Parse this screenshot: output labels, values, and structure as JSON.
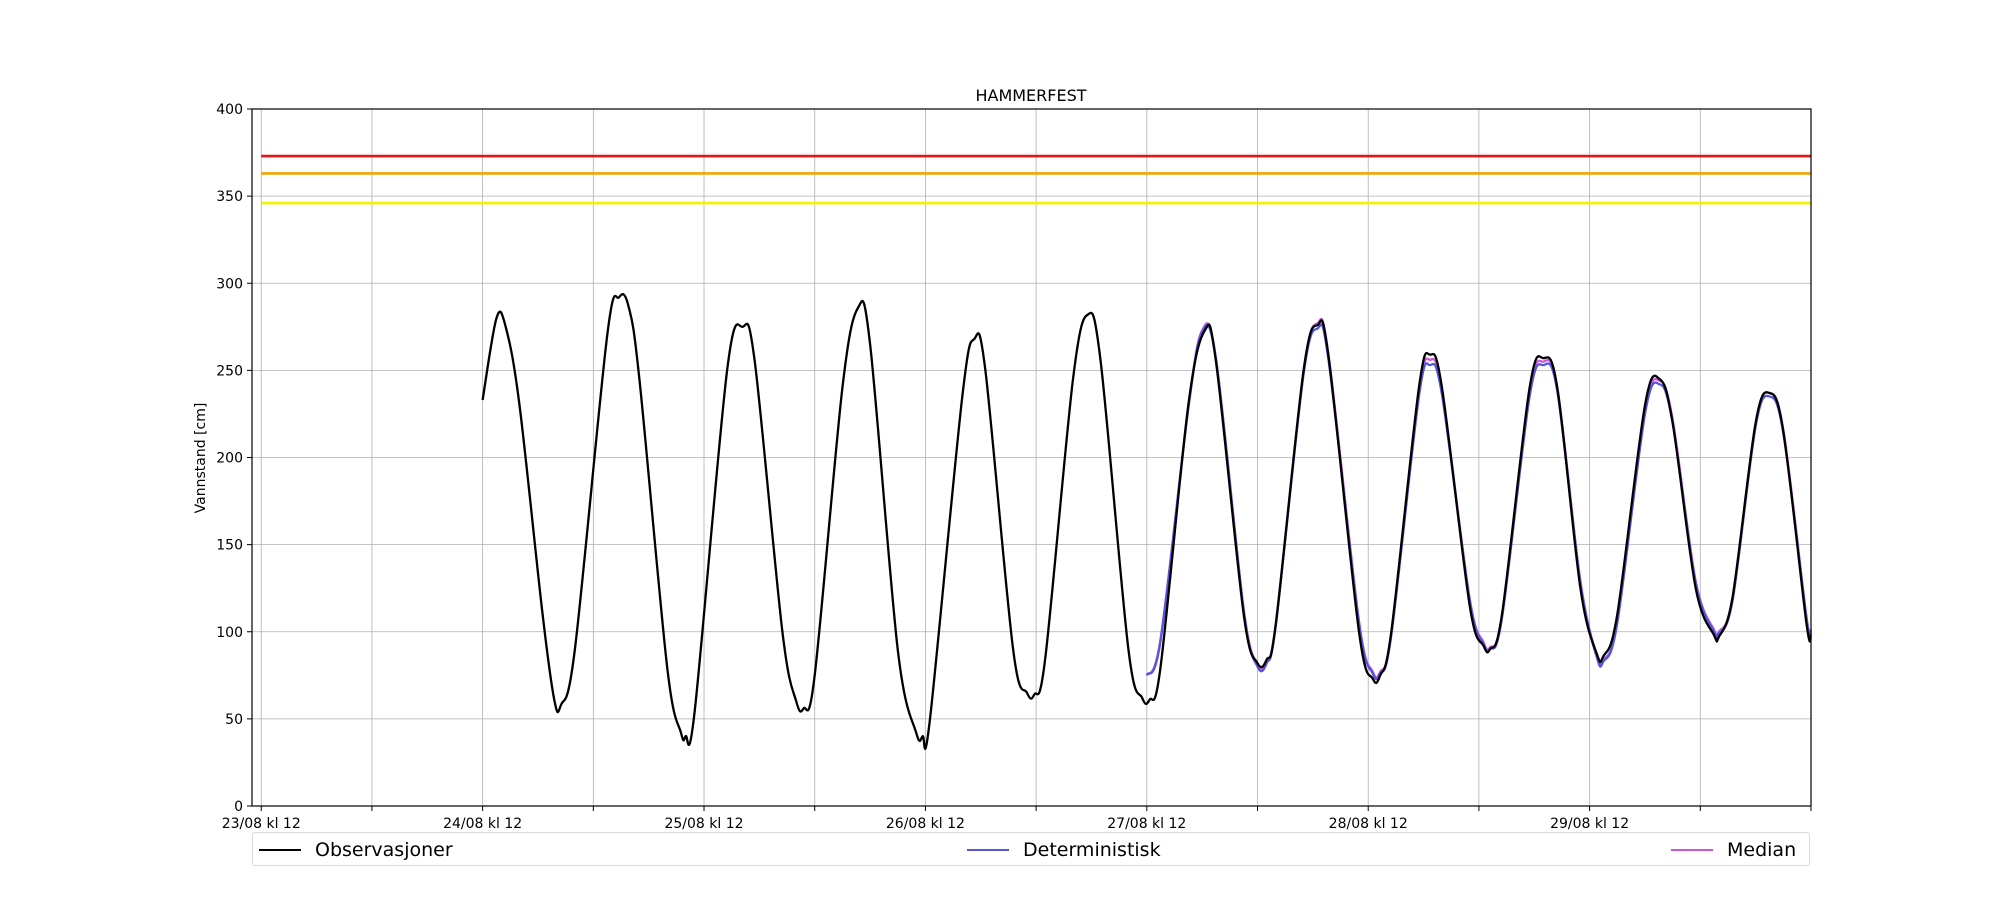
{
  "chart_data": {
    "type": "line",
    "title": "HAMMERFEST",
    "ylabel": "Vannstand [cm]",
    "xlabel": "",
    "ylim": [
      0,
      400
    ],
    "yticks": [
      0,
      50,
      100,
      150,
      200,
      250,
      300,
      350,
      400
    ],
    "x_tick_labels": [
      "23/08 kl 12",
      "24/08 kl 12",
      "25/08 kl 12",
      "26/08 kl 12",
      "27/08 kl 12",
      "28/08 kl 12",
      "29/08 kl 12"
    ],
    "x_unit": "hours since 23/08 kl 12",
    "xlim": [
      -1,
      168
    ],
    "grid": true,
    "legend_position": "bottom",
    "thresholds": [
      {
        "value": 373,
        "color": "#e81414"
      },
      {
        "value": 363,
        "color": "#f5a300"
      },
      {
        "value": 346,
        "color": "#f2f200"
      }
    ],
    "series": [
      {
        "name": "Observasjoner",
        "color": "#000000",
        "points": [
          [
            24,
            233
          ],
          [
            25.5,
            280
          ],
          [
            26.5,
            275
          ],
          [
            28,
            230
          ],
          [
            30.5,
            110
          ],
          [
            31.8,
            60
          ],
          [
            32.5,
            58
          ],
          [
            34,
            90
          ],
          [
            37.5,
            270
          ],
          [
            38.8,
            292
          ],
          [
            39.8,
            287
          ],
          [
            41,
            245
          ],
          [
            44,
            80
          ],
          [
            45.5,
            42
          ],
          [
            46,
            40
          ],
          [
            47,
            55
          ],
          [
            50.5,
            250
          ],
          [
            52.2,
            275
          ],
          [
            53.5,
            255
          ],
          [
            56.5,
            100
          ],
          [
            58,
            60
          ],
          [
            58.8,
            56
          ],
          [
            60,
            75
          ],
          [
            63,
            240
          ],
          [
            64.7,
            286
          ],
          [
            66,
            265
          ],
          [
            69,
            90
          ],
          [
            71,
            42
          ],
          [
            71.7,
            40
          ],
          [
            72.5,
            50
          ],
          [
            76,
            235
          ],
          [
            77.3,
            268
          ],
          [
            78.5,
            250
          ],
          [
            81.5,
            90
          ],
          [
            83,
            65
          ],
          [
            83.8,
            64
          ],
          [
            85,
            85
          ],
          [
            88,
            245
          ],
          [
            89.6,
            282
          ],
          [
            91,
            255
          ],
          [
            94,
            90
          ],
          [
            95.5,
            62
          ],
          [
            96.3,
            61
          ],
          [
            97.5,
            80
          ],
          [
            100.5,
            230
          ],
          [
            102.3,
            273
          ],
          [
            103.5,
            255
          ],
          [
            106.5,
            110
          ],
          [
            108,
            82
          ],
          [
            109,
            84
          ],
          [
            110,
            105
          ],
          [
            113,
            250
          ],
          [
            114.5,
            276
          ],
          [
            115.7,
            258
          ],
          [
            119,
            100
          ],
          [
            120.5,
            73
          ],
          [
            121.3,
            75
          ],
          [
            122.5,
            100
          ],
          [
            125.5,
            240
          ],
          [
            126.7,
            259
          ],
          [
            128,
            240
          ],
          [
            131,
            115
          ],
          [
            132.5,
            92
          ],
          [
            133.2,
            90
          ],
          [
            134.5,
            110
          ],
          [
            137.5,
            240
          ],
          [
            139,
            257
          ],
          [
            140.5,
            240
          ],
          [
            143,
            125
          ],
          [
            144.8,
            87
          ],
          [
            145.5,
            86
          ],
          [
            147,
            110
          ],
          [
            150,
            230
          ],
          [
            151.6,
            245
          ],
          [
            153,
            220
          ],
          [
            155.5,
            125
          ],
          [
            157.5,
            98
          ],
          [
            158,
            97
          ],
          [
            159.5,
            120
          ],
          [
            162,
            220
          ],
          [
            163.5,
            237
          ],
          [
            165,
            215
          ],
          [
            167.5,
            105
          ],
          [
            168,
            98
          ]
        ]
      },
      {
        "name": "Deterministisk",
        "color": "#5555dd",
        "points": [
          [
            96,
            75
          ],
          [
            97.5,
            95
          ],
          [
            100.5,
            228
          ],
          [
            102,
            272
          ],
          [
            103.5,
            256
          ],
          [
            106.5,
            112
          ],
          [
            108,
            80
          ],
          [
            109,
            82
          ],
          [
            110,
            105
          ],
          [
            113,
            248
          ],
          [
            114.5,
            274
          ],
          [
            115.7,
            256
          ],
          [
            119,
            105
          ],
          [
            120.5,
            76
          ],
          [
            121.3,
            76
          ],
          [
            122.5,
            98
          ],
          [
            125.5,
            235
          ],
          [
            126.7,
            253
          ],
          [
            128,
            236
          ],
          [
            131,
            118
          ],
          [
            132.5,
            93
          ],
          [
            133.2,
            90
          ],
          [
            134.5,
            108
          ],
          [
            137.5,
            235
          ],
          [
            139,
            253
          ],
          [
            140.5,
            238
          ],
          [
            143,
            128
          ],
          [
            144.8,
            85
          ],
          [
            145.5,
            83
          ],
          [
            147,
            105
          ],
          [
            150,
            225
          ],
          [
            151.6,
            242
          ],
          [
            153,
            220
          ],
          [
            155.5,
            128
          ],
          [
            157.5,
            100
          ],
          [
            158,
            99
          ],
          [
            159.5,
            118
          ],
          [
            162,
            218
          ],
          [
            163.5,
            235
          ],
          [
            165,
            214
          ],
          [
            167.5,
            108
          ],
          [
            168,
            100
          ]
        ]
      },
      {
        "name": "Median",
        "color": "#cc55dd",
        "points": [
          [
            96,
            75
          ],
          [
            97.5,
            96
          ],
          [
            100.5,
            229
          ],
          [
            102,
            273
          ],
          [
            103.5,
            257
          ],
          [
            106.5,
            113
          ],
          [
            108,
            81
          ],
          [
            109,
            83
          ],
          [
            110,
            106
          ],
          [
            113,
            250
          ],
          [
            114.5,
            277
          ],
          [
            115.7,
            259
          ],
          [
            119,
            106
          ],
          [
            120.5,
            77
          ],
          [
            121.3,
            77
          ],
          [
            122.5,
            99
          ],
          [
            125.5,
            237
          ],
          [
            126.7,
            256
          ],
          [
            128,
            238
          ],
          [
            131,
            119
          ],
          [
            132.5,
            94
          ],
          [
            133.2,
            91
          ],
          [
            134.5,
            109
          ],
          [
            137.5,
            237
          ],
          [
            139,
            255
          ],
          [
            140.5,
            240
          ],
          [
            143,
            129
          ],
          [
            144.8,
            86
          ],
          [
            145.5,
            84
          ],
          [
            147,
            106
          ],
          [
            150,
            227
          ],
          [
            151.6,
            244
          ],
          [
            153,
            222
          ],
          [
            155.5,
            129
          ],
          [
            157.5,
            101
          ],
          [
            158,
            100
          ],
          [
            159.5,
            119
          ],
          [
            162,
            220
          ],
          [
            163.5,
            237
          ],
          [
            165,
            216
          ],
          [
            167.5,
            109
          ],
          [
            168,
            101
          ]
        ]
      }
    ]
  }
}
